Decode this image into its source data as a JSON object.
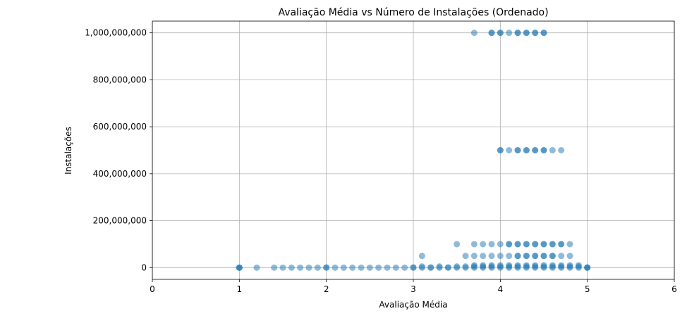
{
  "chart_data": {
    "type": "scatter",
    "title": "Avaliação Média vs Número de Instalações (Ordenado)",
    "xlabel": "Avaliação Média",
    "ylabel": "Instalações",
    "xlim": [
      0,
      6
    ],
    "ylim": [
      -50000000,
      1050000000
    ],
    "xticks": [
      0,
      1,
      2,
      3,
      4,
      5,
      6
    ],
    "xtick_labels": [
      "0",
      "1",
      "2",
      "3",
      "4",
      "5",
      "6"
    ],
    "yticks": [
      0,
      200000000,
      400000000,
      600000000,
      800000000,
      1000000000
    ],
    "ytick_labels": [
      "0",
      "200,000,000",
      "400,000,000",
      "600,000,000",
      "800,000,000",
      "1,000,000,000"
    ],
    "grid": true,
    "marker_color": "#1f77b4",
    "marker_alpha": 0.5,
    "series": [
      {
        "points": [
          [
            1.0,
            0
          ],
          [
            1.0,
            0
          ],
          [
            1.0,
            0
          ],
          [
            1.2,
            0
          ],
          [
            1.4,
            0
          ],
          [
            1.5,
            0
          ],
          [
            1.6,
            0
          ],
          [
            1.7,
            0
          ],
          [
            1.8,
            0
          ],
          [
            1.9,
            0
          ],
          [
            2.0,
            0
          ],
          [
            2.0,
            1000000
          ],
          [
            2.1,
            0
          ],
          [
            2.2,
            0
          ],
          [
            2.3,
            0
          ],
          [
            2.4,
            0
          ],
          [
            2.5,
            0
          ],
          [
            2.6,
            0
          ],
          [
            2.7,
            0
          ],
          [
            2.8,
            0
          ],
          [
            2.9,
            0
          ],
          [
            3.0,
            0
          ],
          [
            3.0,
            1000000
          ],
          [
            3.1,
            0
          ],
          [
            3.1,
            5000000
          ],
          [
            3.1,
            50000000
          ],
          [
            3.2,
            0
          ],
          [
            3.2,
            1000000
          ],
          [
            3.3,
            0
          ],
          [
            3.3,
            5000000
          ],
          [
            3.4,
            0
          ],
          [
            3.4,
            1000000
          ],
          [
            3.5,
            0
          ],
          [
            3.5,
            5000000
          ],
          [
            3.5,
            100000000
          ],
          [
            3.6,
            0
          ],
          [
            3.6,
            5000000
          ],
          [
            3.6,
            50000000
          ],
          [
            3.7,
            0
          ],
          [
            3.7,
            5000000
          ],
          [
            3.7,
            10000000
          ],
          [
            3.7,
            50000000
          ],
          [
            3.7,
            100000000
          ],
          [
            3.7,
            1000000000
          ],
          [
            3.8,
            0
          ],
          [
            3.8,
            5000000
          ],
          [
            3.8,
            10000000
          ],
          [
            3.8,
            50000000
          ],
          [
            3.8,
            100000000
          ],
          [
            3.9,
            0
          ],
          [
            3.9,
            5000000
          ],
          [
            3.9,
            10000000
          ],
          [
            3.9,
            50000000
          ],
          [
            3.9,
            100000000
          ],
          [
            3.9,
            1000000000
          ],
          [
            3.9,
            1000000000
          ],
          [
            4.0,
            0
          ],
          [
            4.0,
            5000000
          ],
          [
            4.0,
            10000000
          ],
          [
            4.0,
            50000000
          ],
          [
            4.0,
            100000000
          ],
          [
            4.0,
            500000000
          ],
          [
            4.0,
            500000000
          ],
          [
            4.0,
            1000000000
          ],
          [
            4.0,
            1000000000
          ],
          [
            4.1,
            0
          ],
          [
            4.1,
            5000000
          ],
          [
            4.1,
            10000000
          ],
          [
            4.1,
            50000000
          ],
          [
            4.1,
            100000000
          ],
          [
            4.1,
            100000000
          ],
          [
            4.1,
            500000000
          ],
          [
            4.1,
            1000000000
          ],
          [
            4.2,
            0
          ],
          [
            4.2,
            5000000
          ],
          [
            4.2,
            10000000
          ],
          [
            4.2,
            50000000
          ],
          [
            4.2,
            50000000
          ],
          [
            4.2,
            100000000
          ],
          [
            4.2,
            100000000
          ],
          [
            4.2,
            500000000
          ],
          [
            4.2,
            500000000
          ],
          [
            4.2,
            1000000000
          ],
          [
            4.2,
            1000000000
          ],
          [
            4.3,
            0
          ],
          [
            4.3,
            5000000
          ],
          [
            4.3,
            10000000
          ],
          [
            4.3,
            50000000
          ],
          [
            4.3,
            50000000
          ],
          [
            4.3,
            100000000
          ],
          [
            4.3,
            100000000
          ],
          [
            4.3,
            500000000
          ],
          [
            4.3,
            500000000
          ],
          [
            4.3,
            1000000000
          ],
          [
            4.3,
            1000000000
          ],
          [
            4.4,
            0
          ],
          [
            4.4,
            5000000
          ],
          [
            4.4,
            10000000
          ],
          [
            4.4,
            50000000
          ],
          [
            4.4,
            50000000
          ],
          [
            4.4,
            100000000
          ],
          [
            4.4,
            100000000
          ],
          [
            4.4,
            500000000
          ],
          [
            4.4,
            500000000
          ],
          [
            4.4,
            1000000000
          ],
          [
            4.4,
            1000000000
          ],
          [
            4.5,
            0
          ],
          [
            4.5,
            5000000
          ],
          [
            4.5,
            10000000
          ],
          [
            4.5,
            50000000
          ],
          [
            4.5,
            50000000
          ],
          [
            4.5,
            100000000
          ],
          [
            4.5,
            100000000
          ],
          [
            4.5,
            500000000
          ],
          [
            4.5,
            500000000
          ],
          [
            4.5,
            1000000000
          ],
          [
            4.5,
            1000000000
          ],
          [
            4.6,
            0
          ],
          [
            4.6,
            5000000
          ],
          [
            4.6,
            10000000
          ],
          [
            4.6,
            50000000
          ],
          [
            4.6,
            50000000
          ],
          [
            4.6,
            100000000
          ],
          [
            4.6,
            100000000
          ],
          [
            4.6,
            500000000
          ],
          [
            4.7,
            0
          ],
          [
            4.7,
            5000000
          ],
          [
            4.7,
            10000000
          ],
          [
            4.7,
            50000000
          ],
          [
            4.7,
            100000000
          ],
          [
            4.7,
            100000000
          ],
          [
            4.7,
            500000000
          ],
          [
            4.8,
            0
          ],
          [
            4.8,
            5000000
          ],
          [
            4.8,
            10000000
          ],
          [
            4.8,
            50000000
          ],
          [
            4.8,
            100000000
          ],
          [
            4.9,
            0
          ],
          [
            4.9,
            5000000
          ],
          [
            4.9,
            10000000
          ],
          [
            5.0,
            0
          ],
          [
            5.0,
            0
          ],
          [
            5.0,
            1000000
          ]
        ]
      }
    ]
  }
}
